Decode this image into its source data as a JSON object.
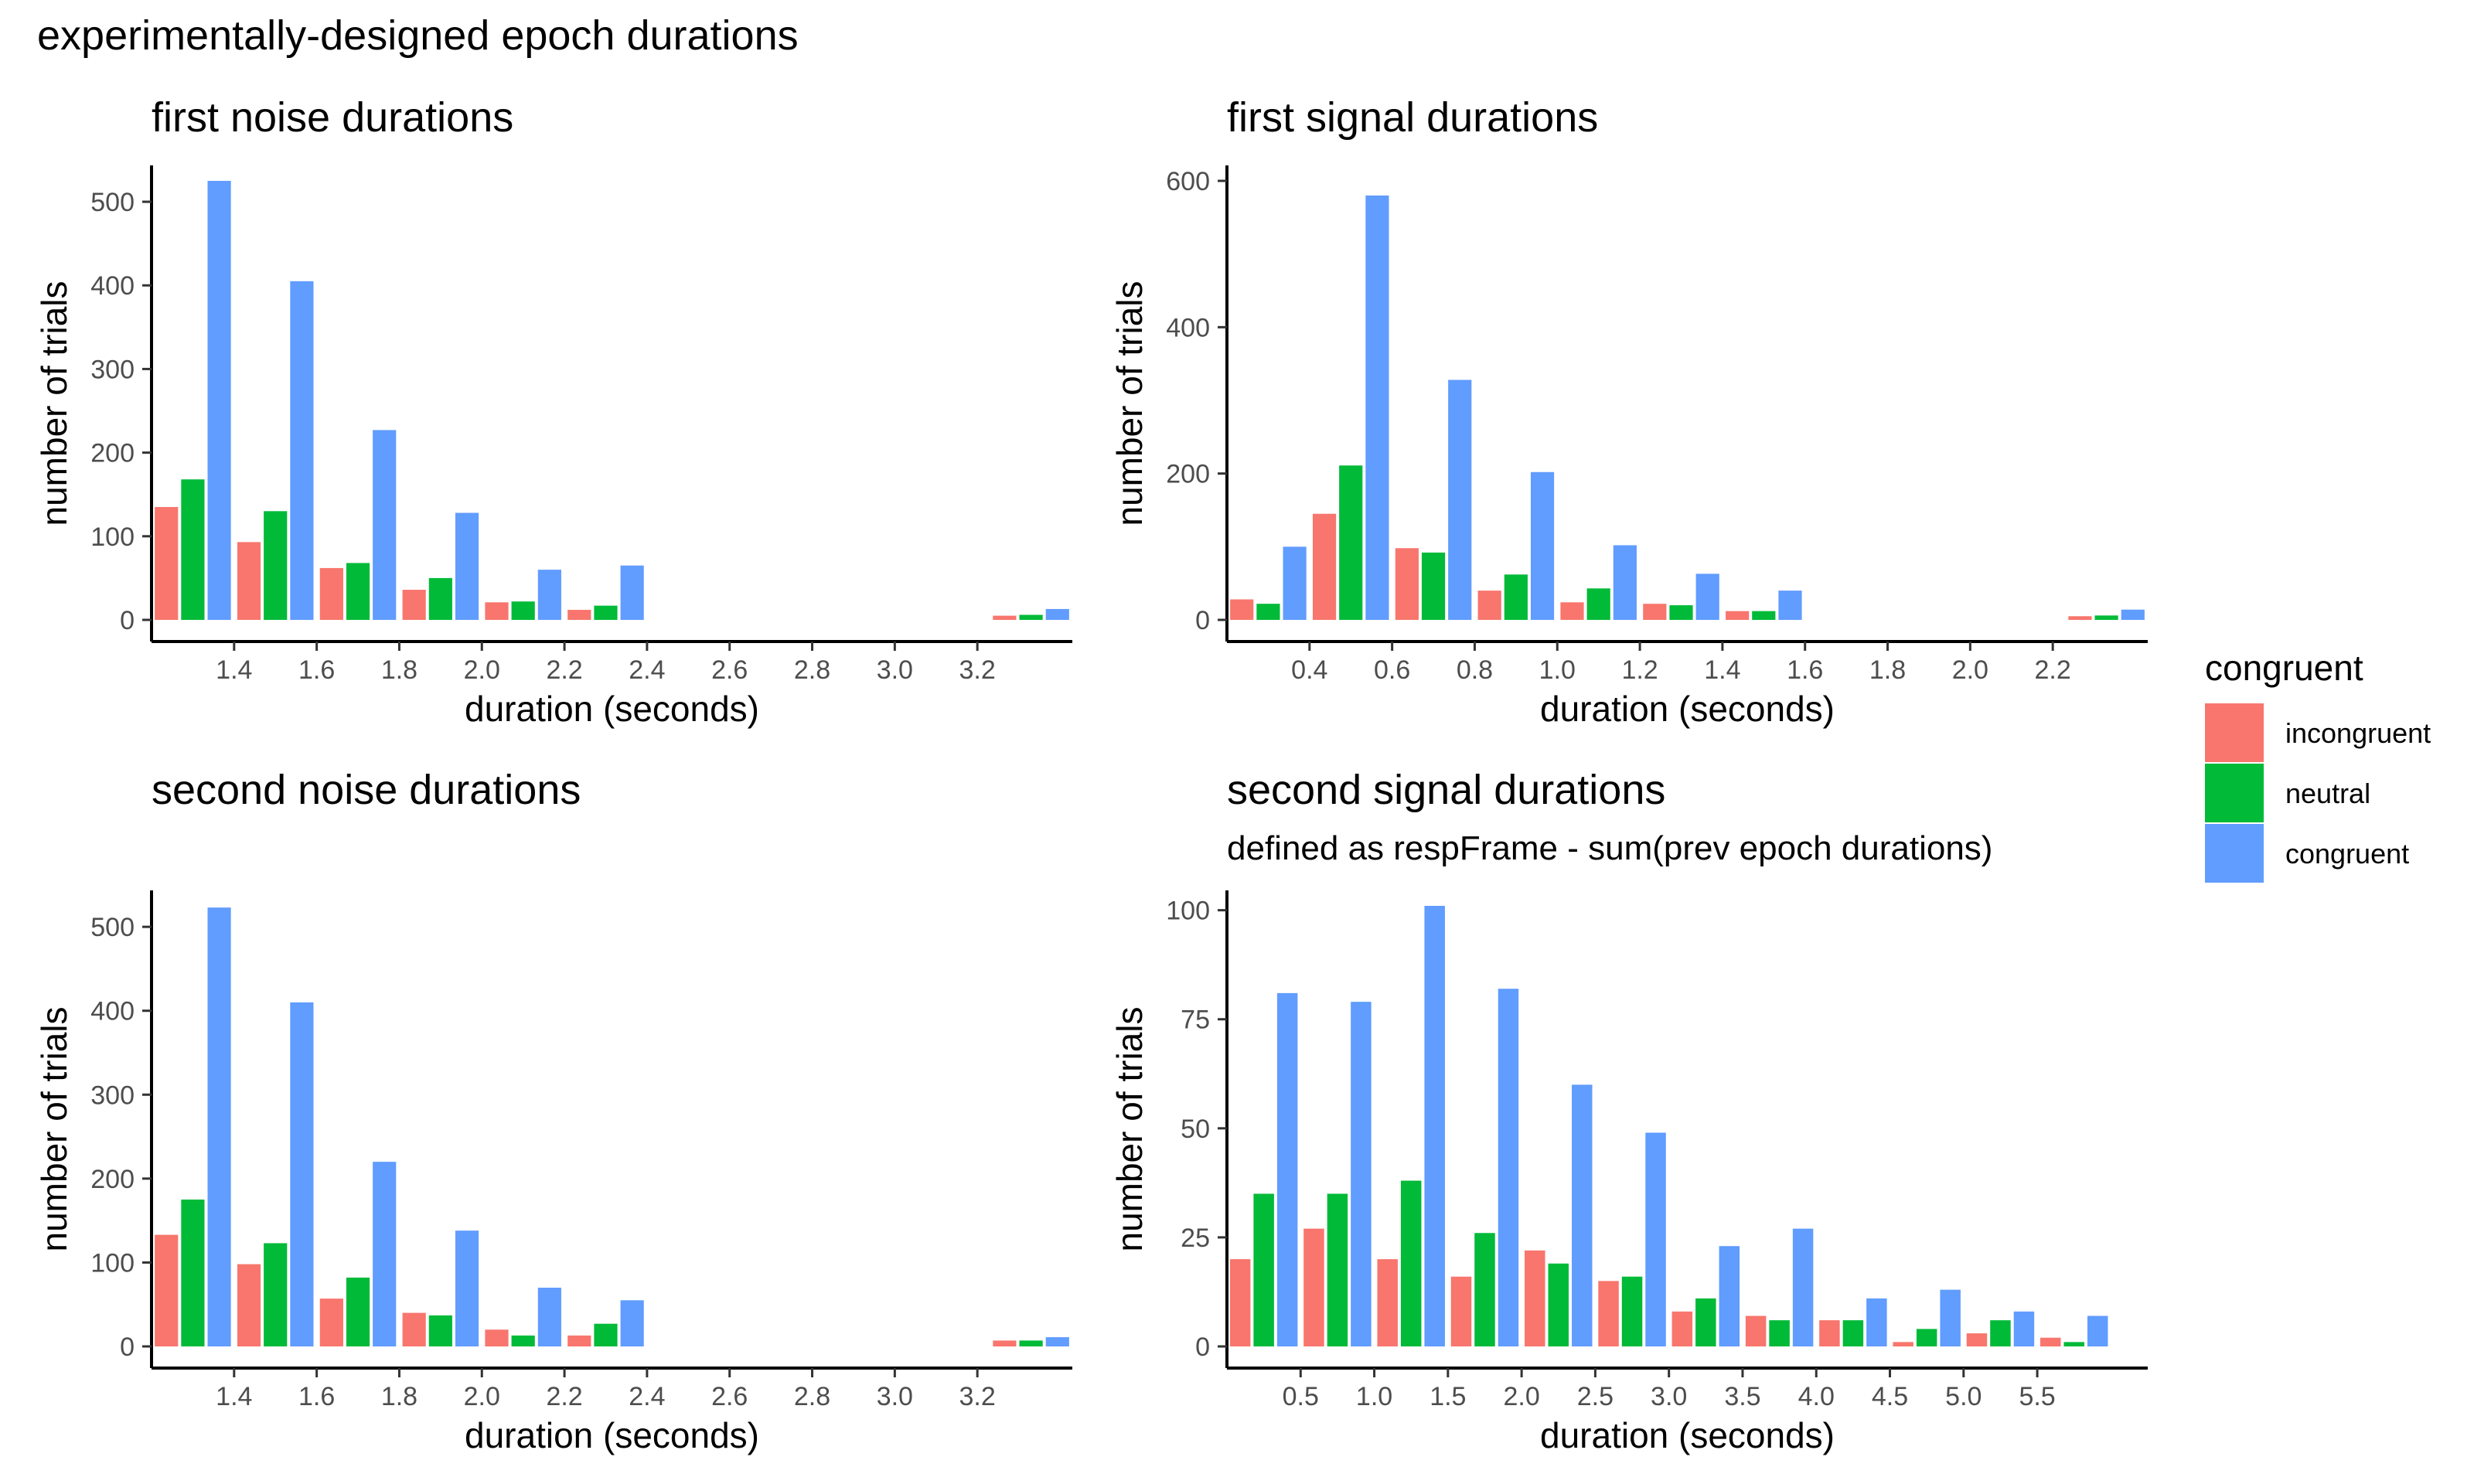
{
  "title": "experimentally-designed epoch durations",
  "colors": {
    "incongruent": "#F8766D",
    "neutral": "#00BA38",
    "congruent": "#619CFF"
  },
  "legend": {
    "title": "congruent",
    "items": [
      "incongruent",
      "neutral",
      "congruent"
    ]
  },
  "chart_data": [
    {
      "type": "bar",
      "title": "first noise durations",
      "subtitle": "",
      "xlabel": "duration (seconds)",
      "ylabel": "number of trials",
      "xlim": [
        1.2,
        3.43
      ],
      "ylim": [
        0,
        525
      ],
      "xticks": [
        1.4,
        1.6,
        1.8,
        2.0,
        2.2,
        2.4,
        2.6,
        2.8,
        3.0,
        3.2
      ],
      "xtick_labels": [
        "1.4",
        "1.6",
        "1.8",
        "2.0",
        "2.2",
        "2.4",
        "2.6",
        "2.8",
        "3.0",
        "3.2"
      ],
      "yticks": [
        0,
        100,
        200,
        300,
        400,
        500
      ],
      "ytick_labels": [
        "0",
        "100",
        "200",
        "300",
        "400",
        "500"
      ],
      "bin_width": 0.2,
      "x": [
        1.3,
        1.5,
        1.7,
        1.9,
        2.1,
        2.3,
        3.33
      ],
      "series": [
        {
          "name": "incongruent",
          "values": [
            135,
            93,
            62,
            36,
            21,
            12,
            5
          ]
        },
        {
          "name": "neutral",
          "values": [
            168,
            130,
            68,
            50,
            22,
            17,
            6
          ]
        },
        {
          "name": "congruent",
          "values": [
            525,
            405,
            227,
            128,
            60,
            65,
            13
          ]
        }
      ]
    },
    {
      "type": "bar",
      "title": "first signal durations",
      "subtitle": "",
      "xlabel": "duration (seconds)",
      "ylabel": "number of trials",
      "xlim": [
        0.2,
        2.43
      ],
      "ylim": [
        0,
        600
      ],
      "xticks": [
        0.4,
        0.6,
        0.8,
        1.0,
        1.2,
        1.4,
        1.6,
        1.8,
        2.0,
        2.2
      ],
      "xtick_labels": [
        "0.4",
        "0.6",
        "0.8",
        "1.0",
        "1.2",
        "1.4",
        "1.6",
        "1.8",
        "2.0",
        "2.2"
      ],
      "yticks": [
        0,
        200,
        400,
        600
      ],
      "ytick_labels": [
        "0",
        "200",
        "400",
        "600"
      ],
      "bin_width": 0.2,
      "x": [
        0.3,
        0.5,
        0.7,
        0.9,
        1.1,
        1.3,
        1.5,
        2.33
      ],
      "series": [
        {
          "name": "incongruent",
          "values": [
            28,
            145,
            98,
            40,
            24,
            22,
            12,
            5
          ]
        },
        {
          "name": "neutral",
          "values": [
            22,
            211,
            92,
            62,
            43,
            20,
            12,
            6
          ]
        },
        {
          "name": "congruent",
          "values": [
            100,
            580,
            328,
            202,
            102,
            63,
            40,
            14
          ]
        }
      ]
    },
    {
      "type": "bar",
      "title": "second noise durations",
      "subtitle": "",
      "xlabel": "duration (seconds)",
      "ylabel": "number of trials",
      "xlim": [
        1.2,
        3.43
      ],
      "ylim": [
        0,
        525
      ],
      "xticks": [
        1.4,
        1.6,
        1.8,
        2.0,
        2.2,
        2.4,
        2.6,
        2.8,
        3.0,
        3.2
      ],
      "xtick_labels": [
        "1.4",
        "1.6",
        "1.8",
        "2.0",
        "2.2",
        "2.4",
        "2.6",
        "2.8",
        "3.0",
        "3.2"
      ],
      "yticks": [
        0,
        100,
        200,
        300,
        400,
        500
      ],
      "ytick_labels": [
        "0",
        "100",
        "200",
        "300",
        "400",
        "500"
      ],
      "bin_width": 0.2,
      "x": [
        1.3,
        1.5,
        1.7,
        1.9,
        2.1,
        2.3,
        3.33
      ],
      "series": [
        {
          "name": "incongruent",
          "values": [
            133,
            98,
            57,
            40,
            20,
            13,
            7
          ]
        },
        {
          "name": "neutral",
          "values": [
            175,
            123,
            82,
            37,
            13,
            27,
            7
          ]
        },
        {
          "name": "congruent",
          "values": [
            523,
            410,
            220,
            138,
            70,
            55,
            11
          ]
        }
      ]
    },
    {
      "type": "bar",
      "title": "second signal durations",
      "subtitle": "defined as respFrame - sum(prev epoch durations)",
      "xlabel": "duration (seconds)",
      "ylabel": "number of trials",
      "xlim": [
        0.0,
        6.25
      ],
      "ylim": [
        0,
        101
      ],
      "xticks": [
        0.5,
        1.0,
        1.5,
        2.0,
        2.5,
        3.0,
        3.5,
        4.0,
        4.5,
        5.0,
        5.5
      ],
      "xtick_labels": [
        "0.5",
        "1.0",
        "1.5",
        "2.0",
        "2.5",
        "3.0",
        "3.5",
        "4.0",
        "4.5",
        "5.0",
        "5.5"
      ],
      "yticks": [
        0,
        25,
        50,
        75,
        100
      ],
      "ytick_labels": [
        "0",
        "25",
        "50",
        "75",
        "100"
      ],
      "bin_width": 0.5,
      "x": [
        0.25,
        0.75,
        1.25,
        1.75,
        2.25,
        2.75,
        3.25,
        3.75,
        4.25,
        4.75,
        5.25,
        5.75
      ],
      "series": [
        {
          "name": "incongruent",
          "values": [
            20,
            27,
            20,
            16,
            22,
            15,
            8,
            7,
            6,
            1,
            3,
            2
          ]
        },
        {
          "name": "neutral",
          "values": [
            35,
            35,
            38,
            26,
            19,
            16,
            11,
            6,
            6,
            4,
            6,
            1
          ]
        },
        {
          "name": "congruent",
          "values": [
            81,
            79,
            101,
            82,
            60,
            49,
            23,
            27,
            11,
            13,
            8,
            7
          ]
        }
      ]
    }
  ]
}
